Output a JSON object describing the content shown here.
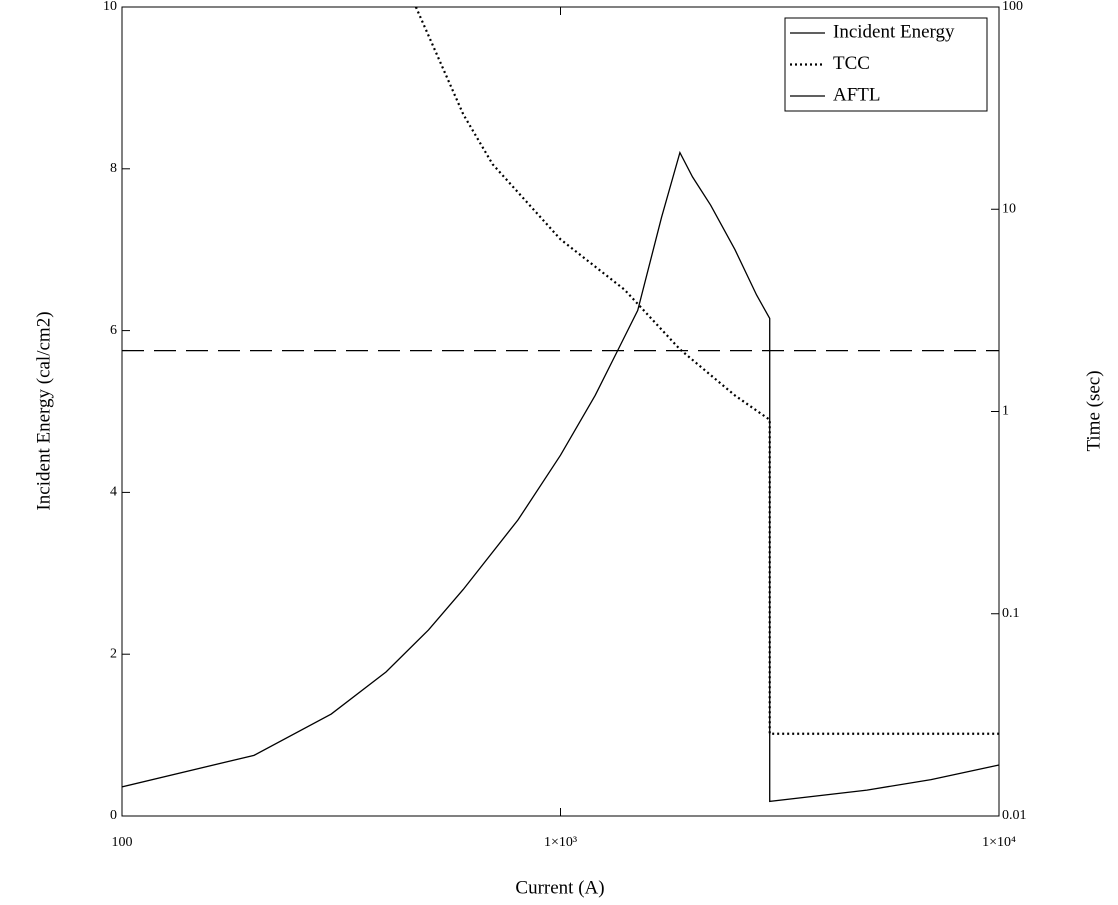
{
  "chart_data": {
    "type": "line",
    "x_label": "Current (A)",
    "y_label": "Incident Energy (cal/cm2)",
    "y2_label": "Time (sec)",
    "xscale": "log",
    "y2scale": "log",
    "xlim": [
      100,
      10000
    ],
    "xticks": [
      100,
      {
        "value": 1000,
        "label": "1×10³"
      },
      {
        "value": 10000,
        "label": "1×10⁴"
      }
    ],
    "ylim": [
      0,
      10
    ],
    "yticks": [
      0,
      2,
      4,
      6,
      8,
      10
    ],
    "y2lim": [
      0.01,
      100
    ],
    "y2ticks": [
      0.01,
      0.1,
      1,
      10,
      100
    ],
    "legend": "top-right",
    "series": [
      {
        "name": "Incident Energy",
        "color": "#000000",
        "dash": "solid",
        "x": [
          100,
          200,
          300,
          400,
          500,
          600,
          800,
          1000,
          1200,
          1352,
          1500,
          1700,
          1872,
          2000,
          2200,
          2500,
          2800,
          3000,
          3000,
          5000,
          7000,
          10000
        ],
        "values": [
          0.36,
          0.75,
          1.26,
          1.78,
          2.3,
          2.8,
          3.66,
          4.46,
          5.2,
          5.76,
          6.25,
          7.4,
          8.2,
          7.9,
          7.55,
          7.0,
          6.44,
          6.15,
          0.18,
          0.32,
          0.45,
          0.63
        ]
      },
      {
        "name": "TCC",
        "color": "#000000",
        "dash": "dotted",
        "axis": "y2",
        "x": [
          468,
          600,
          700,
          1000,
          1400,
          1872,
          2500,
          3000,
          3000,
          10000
        ],
        "values": [
          100,
          29.5,
          16.7,
          7.1,
          4.0,
          2.03,
          1.2,
          0.91,
          0.0255,
          0.0255
        ]
      },
      {
        "name": "AFTL",
        "color": "#000000",
        "dash": "dashed",
        "axis": "y2",
        "x": [
          100,
          10000
        ],
        "values": [
          2,
          2
        ]
      }
    ]
  }
}
